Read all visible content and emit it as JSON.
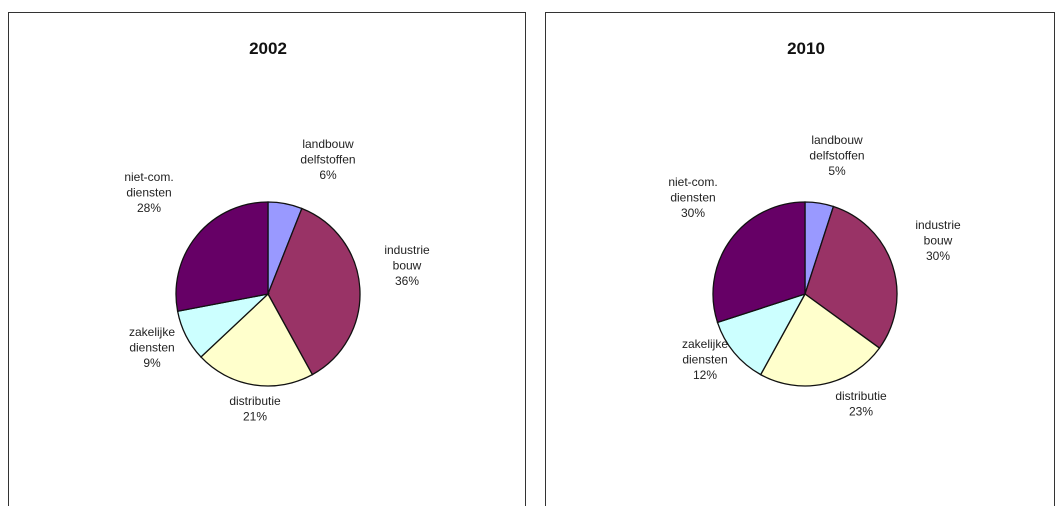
{
  "chart_data": [
    {
      "type": "pie",
      "title": "2002",
      "colors": [
        "#9999ff",
        "#993366",
        "#ffffcc",
        "#ccffff",
        "#660066"
      ],
      "slices": [
        {
          "lines": [
            "landbouw",
            "delfstoffen"
          ],
          "value": 6,
          "label": "6%"
        },
        {
          "lines": [
            "industrie",
            "bouw"
          ],
          "value": 36,
          "label": "36%"
        },
        {
          "lines": [
            "distributie"
          ],
          "value": 21,
          "label": "21%"
        },
        {
          "lines": [
            "zakelijke",
            "diensten"
          ],
          "value": 9,
          "label": "9%"
        },
        {
          "lines": [
            "niet-com.",
            "diensten"
          ],
          "value": 28,
          "label": "28%"
        }
      ]
    },
    {
      "type": "pie",
      "title": "2010",
      "colors": [
        "#9999ff",
        "#993366",
        "#ffffcc",
        "#ccffff",
        "#660066"
      ],
      "slices": [
        {
          "lines": [
            "landbouw",
            "delfstoffen"
          ],
          "value": 5,
          "label": "5%"
        },
        {
          "lines": [
            "industrie",
            "bouw"
          ],
          "value": 30,
          "label": "30%"
        },
        {
          "lines": [
            "distributie"
          ],
          "value": 23,
          "label": "23%"
        },
        {
          "lines": [
            "zakelijke",
            "diensten"
          ],
          "value": 12,
          "label": "12%"
        },
        {
          "lines": [
            "niet-com.",
            "diensten"
          ],
          "value": 30,
          "label": "30%"
        }
      ]
    }
  ]
}
